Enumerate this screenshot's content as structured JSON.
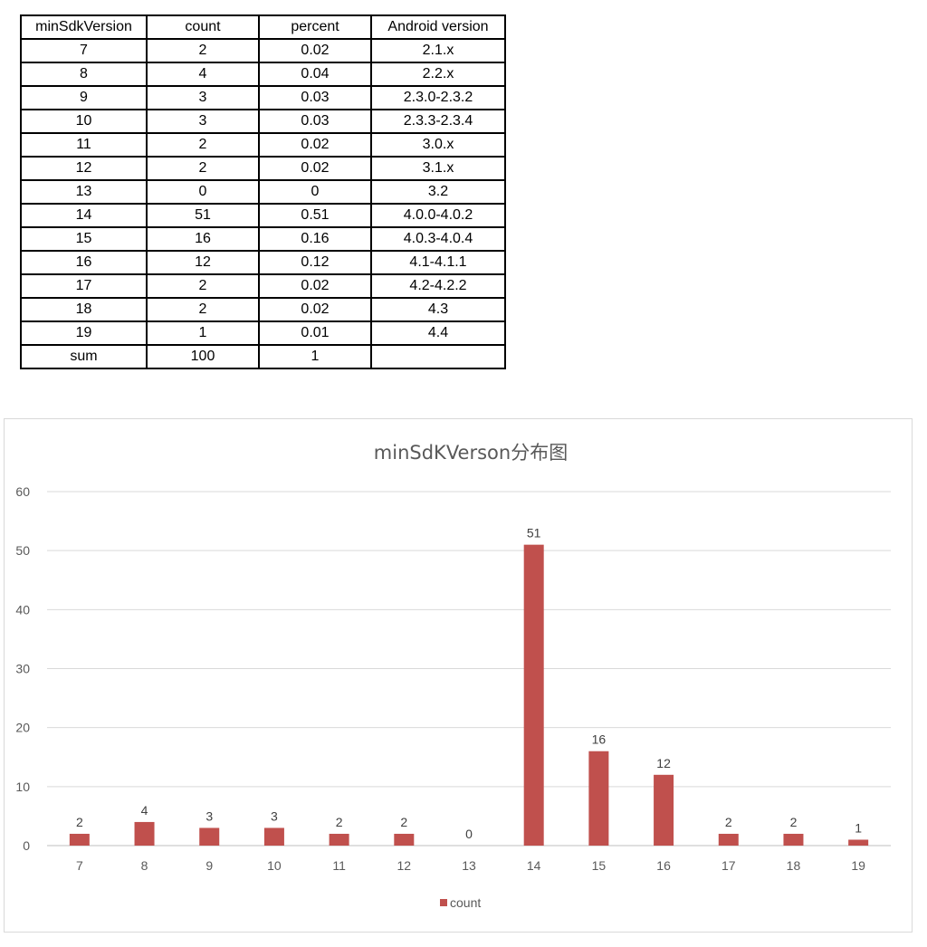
{
  "table": {
    "headers": [
      "minSdkVersion",
      "count",
      "percent",
      "Android version"
    ],
    "rows": [
      [
        "7",
        "2",
        "0.02",
        "2.1.x"
      ],
      [
        "8",
        "4",
        "0.04",
        "2.2.x"
      ],
      [
        "9",
        "3",
        "0.03",
        "2.3.0-2.3.2"
      ],
      [
        "10",
        "3",
        "0.03",
        "2.3.3-2.3.4"
      ],
      [
        "11",
        "2",
        "0.02",
        "3.0.x"
      ],
      [
        "12",
        "2",
        "0.02",
        "3.1.x"
      ],
      [
        "13",
        "0",
        "0",
        "3.2"
      ],
      [
        "14",
        "51",
        "0.51",
        "4.0.0-4.0.2"
      ],
      [
        "15",
        "16",
        "0.16",
        "4.0.3-4.0.4"
      ],
      [
        "16",
        "12",
        "0.12",
        "4.1-4.1.1"
      ],
      [
        "17",
        "2",
        "0.02",
        "4.2-4.2.2"
      ],
      [
        "18",
        "2",
        "0.02",
        "4.3"
      ],
      [
        "19",
        "1",
        "0.01",
        "4.4"
      ],
      [
        "sum",
        "100",
        "1",
        ""
      ]
    ]
  },
  "chart_data": {
    "type": "bar",
    "title": "minSdKVerson分布图",
    "categories": [
      "7",
      "8",
      "9",
      "10",
      "11",
      "12",
      "13",
      "14",
      "15",
      "16",
      "17",
      "18",
      "19"
    ],
    "series": [
      {
        "name": "count",
        "values": [
          2,
          4,
          3,
          3,
          2,
          2,
          0,
          51,
          16,
          12,
          2,
          2,
          1
        ],
        "color": "#c0504d"
      }
    ],
    "ylim": [
      0,
      60
    ],
    "yticks": [
      0,
      10,
      20,
      30,
      40,
      50,
      60
    ],
    "grid": true,
    "legend": "bottom",
    "data_labels": true
  }
}
